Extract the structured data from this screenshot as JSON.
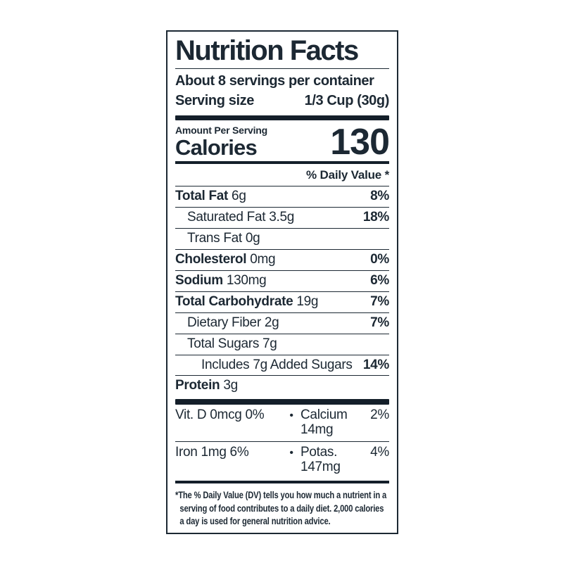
{
  "label": {
    "title": "Nutrition Facts",
    "servings_per_container": "About 8 servings per container",
    "serving_size_label": "Serving size",
    "serving_size_value": "1/3 Cup (30g)",
    "amount_per_serving": "Amount Per Serving",
    "calories_label": "Calories",
    "calories_value": "130",
    "daily_value_header": "% Daily Value *",
    "rows": [
      {
        "name": "Total Fat",
        "amount": "6g",
        "dv": "8%"
      },
      {
        "name": "Saturated Fat",
        "amount": "3.5g",
        "dv": "18%"
      },
      {
        "name": "Trans Fat",
        "amount": "0g",
        "dv": ""
      },
      {
        "name": "Cholesterol",
        "amount": "0mg",
        "dv": "0%"
      },
      {
        "name": "Sodium",
        "amount": "130mg",
        "dv": "6%"
      },
      {
        "name": "Total Carbohydrate",
        "amount": "19g",
        "dv": "7%"
      },
      {
        "name": "Dietary Fiber",
        "amount": "2g",
        "dv": "7%"
      },
      {
        "name": "Total Sugars",
        "amount": "7g",
        "dv": ""
      },
      {
        "name": "Includes 7g Added Sugars",
        "amount": "",
        "dv": "14%"
      },
      {
        "name": "Protein",
        "amount": "3g",
        "dv": ""
      }
    ],
    "bullet": "•",
    "micronutrients": [
      {
        "left": "Vit. D 0mcg 0%",
        "right_name": "Calcium 14mg",
        "right_dv": "2%"
      },
      {
        "left": "Iron 1mg 6%",
        "right_name": "Potas. 147mg",
        "right_dv": "4%"
      }
    ],
    "footnote": "*The % Daily Value (DV) tells you how much a nutrient in a\nserving of food contributes to a daily diet. 2,000 calories\na day is used for general nutrition advice.",
    "colors": {
      "ink": "#1c2833",
      "bar": "#141f2a",
      "background": "#ffffff"
    }
  }
}
